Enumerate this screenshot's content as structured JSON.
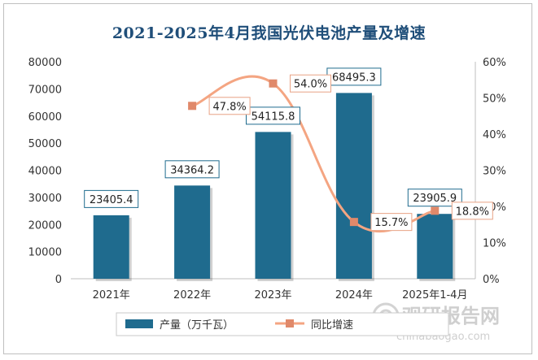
{
  "title": "2021-2025年4月我国光伏电池产量及增速",
  "chart_data": {
    "type": "bar",
    "title": "2021-2025年4月我国光伏电池产量及增速",
    "categories": [
      "2021年",
      "2022年",
      "2023年",
      "2024年",
      "2025年1-4月"
    ],
    "series": [
      {
        "name": "产量（万千瓦）",
        "type": "bar",
        "axis": "left",
        "color": "#1f6b8e",
        "values": [
          23405.4,
          34364.2,
          54115.8,
          68495.3,
          23905.9
        ],
        "labels": [
          "23405.4",
          "34364.2",
          "54115.8",
          "68495.3",
          "23905.9"
        ]
      },
      {
        "name": "同比增速",
        "type": "line",
        "axis": "right",
        "color": "#f4a582",
        "values": [
          null,
          47.8,
          54.0,
          15.7,
          18.8
        ],
        "labels": [
          "",
          "47.8%",
          "54.0%",
          "15.7%",
          "18.8%"
        ]
      }
    ],
    "ylim": [
      0,
      80000
    ],
    "y_ticks": [
      "0",
      "10000",
      "20000",
      "30000",
      "40000",
      "50000",
      "60000",
      "70000",
      "80000"
    ],
    "y2lim": [
      0,
      60
    ],
    "y2_ticks": [
      "0%",
      "10%",
      "20%",
      "30%",
      "40%",
      "50%",
      "60%"
    ],
    "grid": false,
    "legend": "bottom"
  },
  "watermark": {
    "name": "观研报告网",
    "url": "chinabaogao.com"
  }
}
